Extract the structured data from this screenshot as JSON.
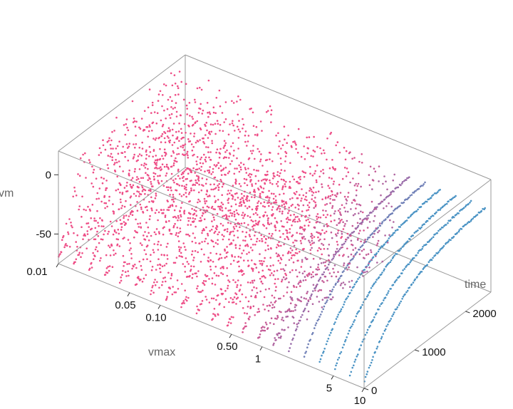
{
  "chart_data": {
    "type": "scatter3d",
    "title": "",
    "axes": {
      "x": {
        "label": "vmax",
        "scale": "log",
        "range": [
          0.01,
          10
        ],
        "ticks": [
          "0.01",
          "0.05",
          "0.10",
          "0.50",
          "1",
          "5",
          "10"
        ],
        "tick_values": [
          0.01,
          0.05,
          0.1,
          0.5,
          1,
          5,
          10
        ]
      },
      "y": {
        "label": "time",
        "scale": "linear",
        "range": [
          0,
          2500
        ],
        "ticks": [
          "0",
          "1000",
          "2000"
        ],
        "tick_values": [
          0,
          1000,
          2000
        ]
      },
      "z": {
        "label": "vm",
        "scale": "linear",
        "range": [
          -75,
          20
        ],
        "ticks": [
          "-50",
          "0"
        ],
        "tick_values": [
          -50,
          0
        ]
      }
    },
    "series_vmax": [
      0.01,
      0.0141,
      0.02,
      0.0283,
      0.04,
      0.0566,
      0.08,
      0.113,
      0.16,
      0.226,
      0.32,
      0.453,
      0.64,
      0.905,
      1.28,
      1.81,
      2.56,
      3.62,
      5.12,
      7.24,
      10
    ],
    "behavior": {
      "regime_by_vmax": [
        "spiking",
        "spiking",
        "spiking",
        "spiking",
        "spiking",
        "spiking",
        "spiking",
        "spiking",
        "spiking",
        "spiking",
        "spiking",
        "spiking",
        "spiking",
        "bursting",
        "bursting",
        "smooth",
        "smooth",
        "smooth",
        "smooth",
        "smooth",
        "smooth"
      ],
      "spike_peak_mV": 15,
      "rest_mV": -70,
      "smooth_end_mV": 0
    },
    "color_scale": {
      "low_vmax_color": "#ee4d86",
      "mid_vmax_color": "#9b6ba8",
      "high_vmax_color": "#4a93c4"
    },
    "grid": false,
    "legend": "none",
    "boxed": true
  }
}
